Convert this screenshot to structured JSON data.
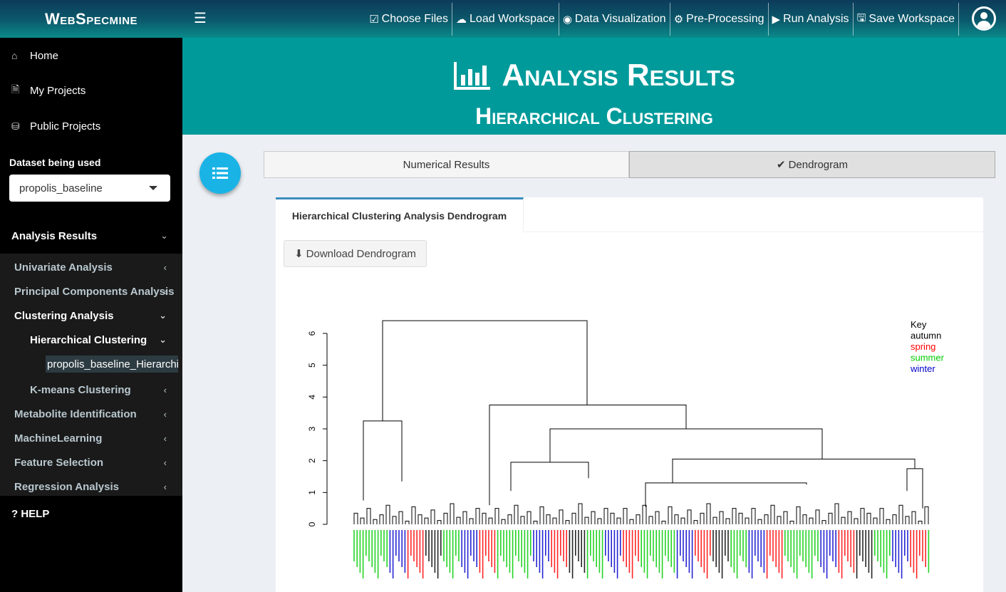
{
  "header": {
    "brand": "WebSpecmine",
    "nav": [
      {
        "label": "Choose Files",
        "icon": "checkbox-icon"
      },
      {
        "label": "Load Workspace",
        "icon": "cloud-download-icon"
      },
      {
        "label": "Data Visualization",
        "icon": "eye-icon"
      },
      {
        "label": "Pre-Processing",
        "icon": "gears-icon"
      },
      {
        "label": "Run Analysis",
        "icon": "play-icon"
      },
      {
        "label": "Save Workspace",
        "icon": "save-icon"
      }
    ]
  },
  "sidebar": {
    "items": [
      {
        "label": "Home",
        "icon": "home-icon"
      },
      {
        "label": "My Projects",
        "icon": "file-icon"
      },
      {
        "label": "Public Projects",
        "icon": "database-icon"
      }
    ],
    "dataset_label": "Dataset being used",
    "dataset_value": "propolis_baseline",
    "section": "Analysis Results",
    "menu": [
      {
        "label": "Univariate Analysis"
      },
      {
        "label": "Principal Components Analysis"
      },
      {
        "label": "Clustering Analysis"
      },
      {
        "label": "Hierarchical Clustering"
      },
      {
        "label": "K-means Clustering"
      },
      {
        "label": "Metabolite Identification"
      },
      {
        "label": "MachineLearning"
      },
      {
        "label": "Feature Selection"
      },
      {
        "label": "Regression Analysis"
      }
    ],
    "leaf": "propolis_baseline_HierarchicalClustering",
    "help": "? HELP"
  },
  "content": {
    "title": "Analysis Results",
    "subtitle": "Hierarchical Clustering",
    "tabs": [
      "Numerical Results",
      "Dendrogram"
    ],
    "panel_tab": "Hierarchical Clustering Analysis Dendrogram",
    "download_button": "Download Dendrogram"
  },
  "colors": {
    "autumn": "#000000",
    "spring": "#ff0000",
    "summer": "#00cc00",
    "winter": "#0000cc"
  },
  "chart_data": {
    "type": "dendrogram",
    "yticks": [
      "0",
      "1",
      "2",
      "3",
      "4",
      "5",
      "6"
    ],
    "ylim": [
      0,
      6.5
    ],
    "legend": {
      "title": "Key",
      "entries": [
        "autumn",
        "spring",
        "summer",
        "winter"
      ],
      "placement": "top-right"
    }
  }
}
